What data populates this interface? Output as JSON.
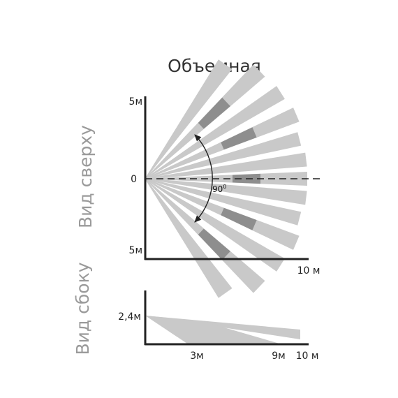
{
  "title": "Объемная",
  "top_view": {
    "side_label": "Вид сверху",
    "y_top": "5м",
    "y_mid": "0",
    "y_bottom": "5м",
    "x_end": "10 м",
    "angle": "90",
    "angle_unit": "0"
  },
  "side_view": {
    "side_label": "Вид сбоку",
    "height": "2,4м",
    "x_3": "3м",
    "x_9": "9м",
    "x_10": "10 м"
  },
  "colors": {
    "beam_light": "#c9c9c9",
    "beam_dark": "#8e8e8e",
    "axis": "#222222",
    "side_text": "#9a9a9a"
  }
}
